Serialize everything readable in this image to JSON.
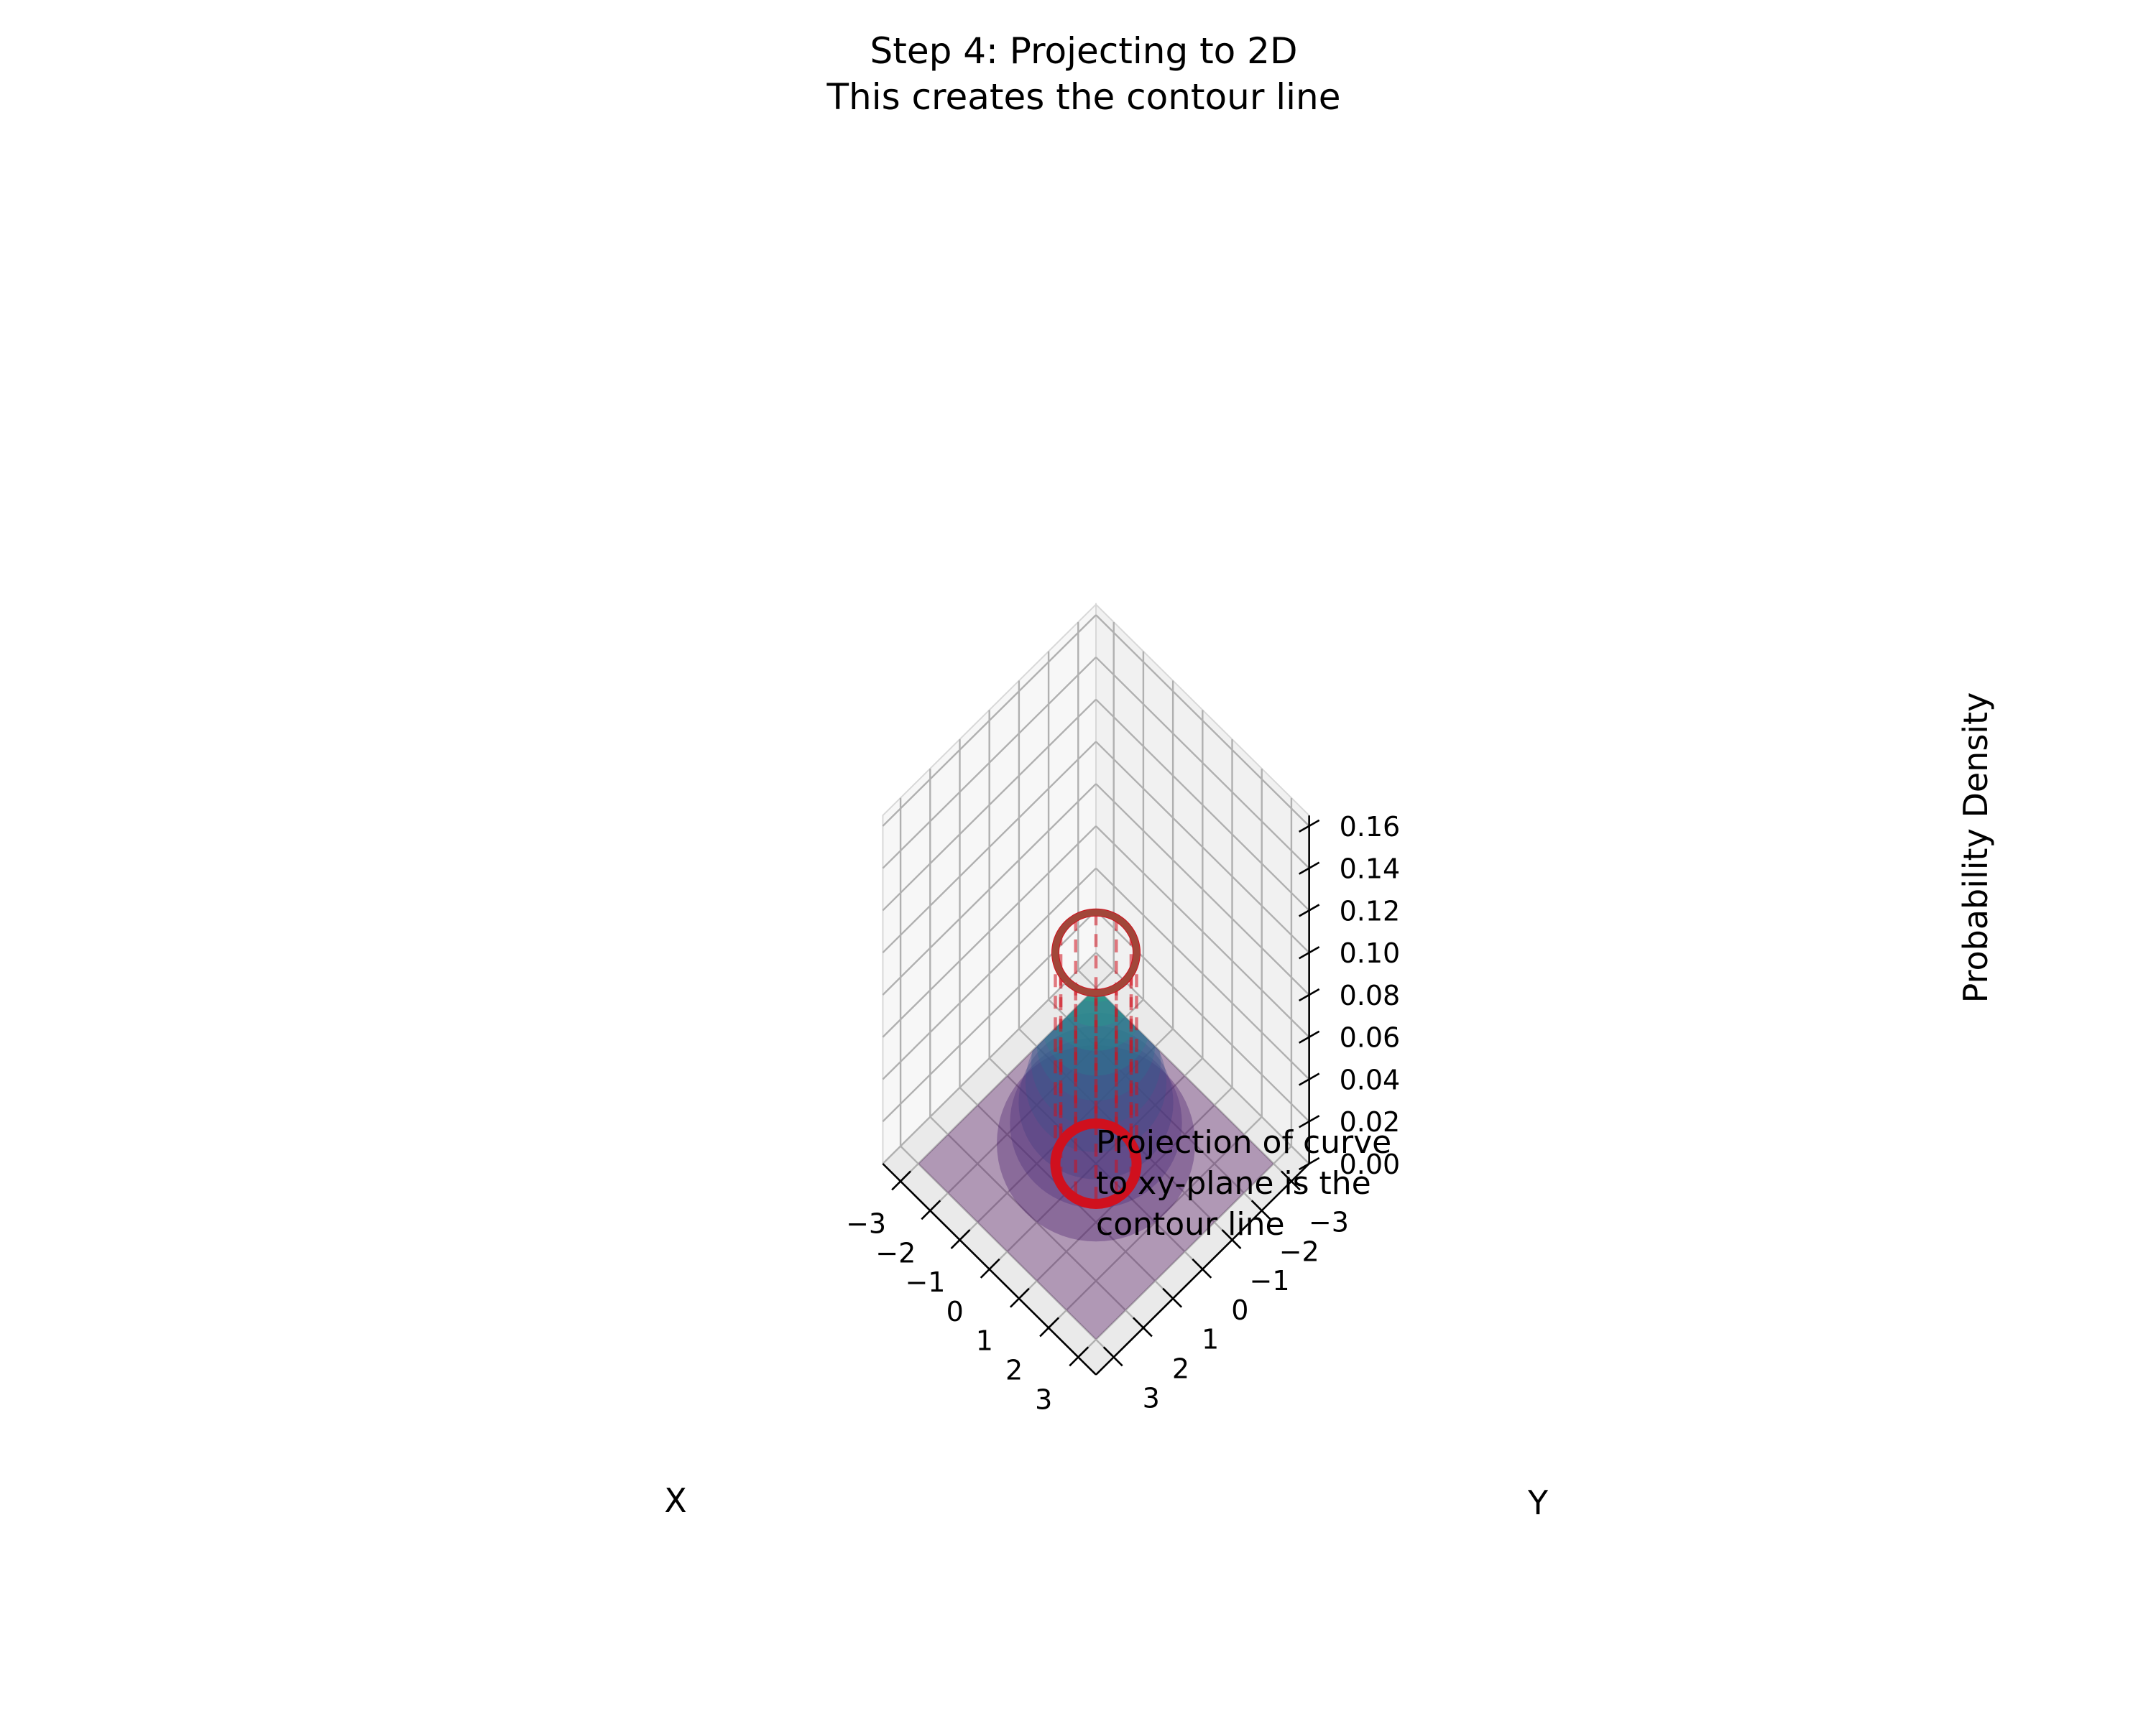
{
  "chart_data": {
    "type": "surface3d",
    "title_lines": [
      "Step 4: Projecting to 2D",
      "This creates the contour line"
    ],
    "xlabel": "X",
    "ylabel": "Y",
    "zlabel": "Probability Density",
    "x_ticks": [
      3,
      2,
      1,
      0,
      -1,
      -2,
      -3
    ],
    "x_tick_labels": [
      "3",
      "2",
      "1",
      "0",
      "−1",
      "−2",
      "−3"
    ],
    "y_ticks": [
      -3,
      -2,
      -1,
      0,
      1,
      2,
      3
    ],
    "y_tick_labels": [
      "−3",
      "−2",
      "−1",
      "0",
      "1",
      "2",
      "3"
    ],
    "z_ticks": [
      0.0,
      0.02,
      0.04,
      0.06,
      0.08,
      0.1,
      0.12,
      0.14,
      0.16
    ],
    "z_tick_labels": [
      "0.00",
      "0.02",
      "0.04",
      "0.06",
      "0.08",
      "0.10",
      "0.12",
      "0.14",
      "0.16"
    ],
    "xlim": [
      -3,
      3
    ],
    "ylim": [
      -3,
      3
    ],
    "zlim": [
      0,
      0.16
    ],
    "surface": {
      "function": "bivariate standard normal density",
      "peak_value": 0.159,
      "colormap": "viridis",
      "alpha": 0.35
    },
    "contour_level": 0.1,
    "contour_radius": 0.97,
    "contour_color": "#d0101e",
    "projection_lines": 12,
    "annotation": [
      "Projection of curve",
      "to xy-plane is the",
      "contour line"
    ],
    "grid": true
  }
}
